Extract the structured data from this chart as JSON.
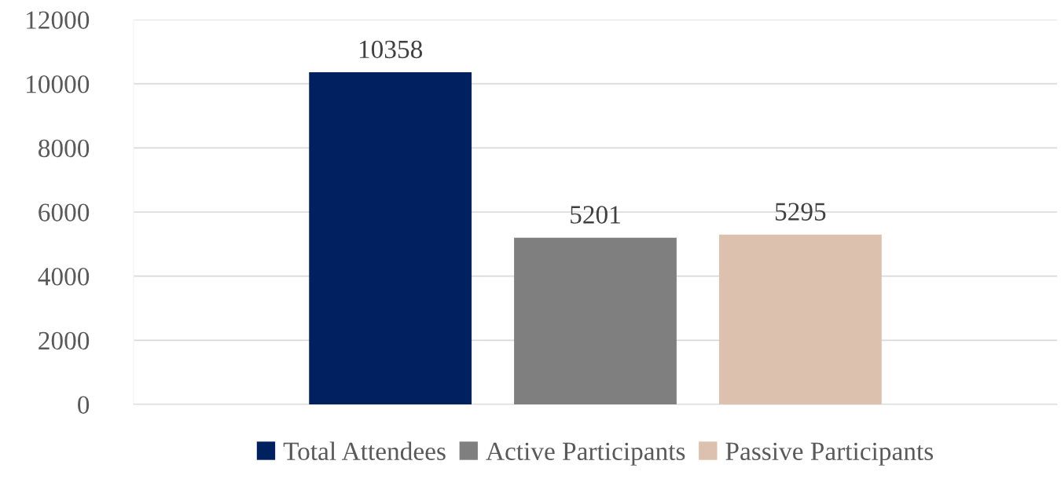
{
  "chart_data": {
    "type": "bar",
    "categories": [
      null
    ],
    "series": [
      {
        "name": "Total Attendees",
        "color": "#002060",
        "values": [
          10358
        ]
      },
      {
        "name": "Active Participants",
        "color": "#7f7f7f",
        "values": [
          5201
        ]
      },
      {
        "name": "Passive Participants",
        "color": "#dbc1ae",
        "values": [
          5295
        ]
      }
    ],
    "ylim": [
      0,
      12000
    ],
    "yticks": [
      0,
      2000,
      4000,
      6000,
      8000,
      10000,
      12000
    ],
    "grid": "y",
    "legend": "bottom",
    "data_labels": true
  }
}
